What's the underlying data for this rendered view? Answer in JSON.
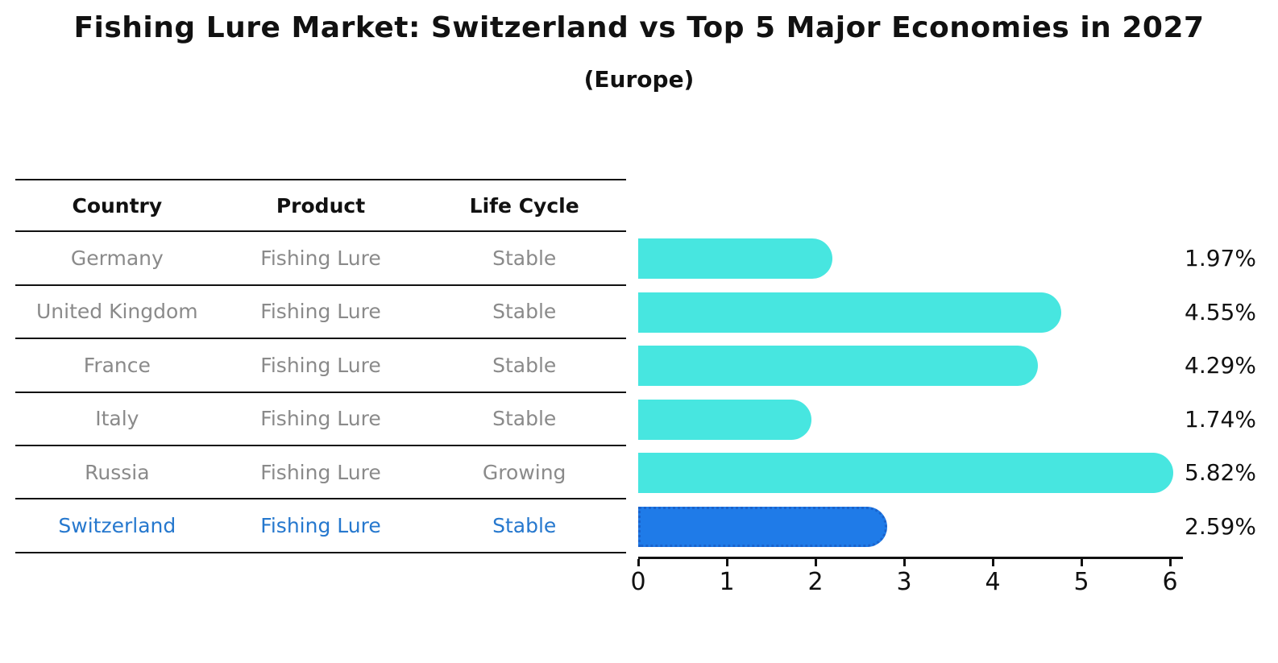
{
  "title": "Fishing Lure Market: Switzerland vs Top 5 Major Economies in 2027",
  "subtitle": "(Europe)",
  "table": {
    "headers": [
      "Country",
      "Product",
      "Life Cycle"
    ],
    "rows": [
      {
        "country": "Germany",
        "product": "Fishing Lure",
        "life_cycle": "Stable"
      },
      {
        "country": "United Kingdom",
        "product": "Fishing Lure",
        "life_cycle": "Stable"
      },
      {
        "country": "France",
        "product": "Fishing Lure",
        "life_cycle": "Stable"
      },
      {
        "country": "Italy",
        "product": "Fishing Lure",
        "life_cycle": "Stable"
      },
      {
        "country": "Russia",
        "product": "Fishing Lure",
        "life_cycle": "Growing"
      },
      {
        "country": "Switzerland",
        "product": "Fishing Lure",
        "life_cycle": "Stable"
      }
    ],
    "highlight_row_index": 5
  },
  "chart_data": {
    "type": "bar",
    "orientation": "horizontal",
    "title": "Fishing Lure Market: Switzerland vs Top 5 Major Economies in 2027 (Europe)",
    "categories": [
      "Germany",
      "United Kingdom",
      "France",
      "Italy",
      "Russia",
      "Switzerland"
    ],
    "values": [
      1.97,
      4.55,
      4.29,
      1.74,
      5.82,
      2.59
    ],
    "value_labels": [
      "1.97%",
      "4.55%",
      "4.29%",
      "1.74%",
      "5.82%",
      "2.59%"
    ],
    "x_ticks": [
      "0",
      "1",
      "2",
      "3",
      "4",
      "5",
      "6"
    ],
    "xlim": [
      0,
      6
    ],
    "grid": false,
    "legend": "none",
    "highlight_index": 5
  },
  "colors": {
    "bar": "#47E6E0",
    "highlight_bar": "#1F7BE8",
    "highlight_bar_edge": "#1A63CC",
    "highlight_text": "#2678CE",
    "row_text": "#8A8A8A",
    "axis": "#111111"
  }
}
